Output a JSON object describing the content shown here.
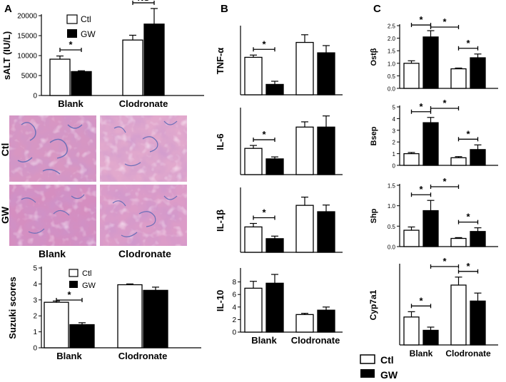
{
  "panel_labels": [
    "A",
    "B",
    "C"
  ],
  "colors": {
    "ctl_fill": "#ffffff",
    "gw_fill": "#000000",
    "stroke": "#000000",
    "tissue": "#d896c2"
  },
  "groups": [
    "Blank",
    "Clodronate"
  ],
  "legend": {
    "ctl": "Ctl",
    "gw": "GW"
  },
  "micrographs": {
    "row_labels": [
      "Ctl",
      "GW"
    ],
    "col_labels": [
      "Blank",
      "Clodronate"
    ]
  },
  "chart_data": [
    {
      "id": "salt",
      "type": "bar",
      "ylabel": "sALT (IU/L)",
      "ylim": [
        0,
        20000
      ],
      "yticks": [
        0,
        5000,
        10000,
        15000,
        20000
      ],
      "tick_labels": [
        "0",
        "5000",
        "10000",
        "15000",
        "20000"
      ],
      "categories": [
        "Blank",
        "Clodronate"
      ],
      "series": [
        {
          "name": "Ctl",
          "values": [
            9100,
            13900
          ],
          "errors": [
            800,
            1200
          ]
        },
        {
          "name": "GW",
          "values": [
            6000,
            17900
          ],
          "errors": [
            200,
            3900
          ]
        }
      ],
      "annotations": [
        {
          "text": "*",
          "between": "Blank Ctl-GW"
        },
        {
          "text": "NS",
          "between": "Clodronate Ctl-GW"
        }
      ]
    },
    {
      "id": "suzuki",
      "type": "bar",
      "ylabel": "Suzuki scores",
      "ylim": [
        0,
        5
      ],
      "yticks": [
        0,
        1,
        2,
        3,
        4,
        5
      ],
      "tick_labels": [
        "0",
        "1",
        "2",
        "3",
        "4",
        "5"
      ],
      "categories": [
        "Blank",
        "Clodronate"
      ],
      "series": [
        {
          "name": "Ctl",
          "values": [
            2.85,
            3.95
          ],
          "errors": [
            0.08,
            0.05
          ]
        },
        {
          "name": "GW",
          "values": [
            1.45,
            3.6
          ],
          "errors": [
            0.12,
            0.2
          ]
        }
      ],
      "annotations": [
        {
          "text": "*",
          "between": "Blank Ctl-GW"
        }
      ]
    },
    {
      "id": "tnf",
      "type": "bar",
      "ylabel": "TNF-α",
      "ylim": [
        0,
        15
      ],
      "categories": [
        "Blank",
        "Clodronate"
      ],
      "series": [
        {
          "name": "Ctl",
          "values": [
            8.3,
            11.6
          ],
          "errors": [
            0.5,
            1.7
          ]
        },
        {
          "name": "GW",
          "values": [
            2.3,
            9.3
          ],
          "errors": [
            0.7,
            1.6
          ]
        }
      ],
      "annotations": [
        {
          "text": "*",
          "between": "Blank Ctl-GW"
        }
      ]
    },
    {
      "id": "il6",
      "type": "bar",
      "ylabel": "IL-6",
      "ylim": [
        0,
        20
      ],
      "categories": [
        "Blank",
        "Clodronate"
      ],
      "series": [
        {
          "name": "Ctl",
          "values": [
            8.0,
            14.5
          ],
          "errors": [
            0.9,
            1.6
          ]
        },
        {
          "name": "GW",
          "values": [
            4.8,
            14.5
          ],
          "errors": [
            0.6,
            3.4
          ]
        }
      ],
      "annotations": [
        {
          "text": "*",
          "between": "Blank Ctl-GW"
        }
      ]
    },
    {
      "id": "il1b",
      "type": "bar",
      "ylabel": "IL-1β",
      "ylim": [
        0,
        20
      ],
      "categories": [
        "Blank",
        "Clodronate"
      ],
      "series": [
        {
          "name": "Ctl",
          "values": [
            8.0,
            14.8
          ],
          "errors": [
            1.1,
            2.6
          ]
        },
        {
          "name": "GW",
          "values": [
            4.3,
            12.8
          ],
          "errors": [
            0.8,
            2.1
          ]
        }
      ],
      "annotations": [
        {
          "text": "*",
          "between": "Blank Ctl-GW"
        }
      ]
    },
    {
      "id": "il10",
      "type": "bar",
      "ylabel": "IL-10",
      "ylim": [
        0,
        10
      ],
      "yticks": [
        0,
        2,
        4,
        6,
        8
      ],
      "tick_labels": [
        "0",
        "2",
        "4",
        "6",
        "8"
      ],
      "categories": [
        "Blank",
        "Clodronate"
      ],
      "series": [
        {
          "name": "Ctl",
          "values": [
            7.0,
            2.8
          ],
          "errors": [
            1.1,
            0.2
          ]
        },
        {
          "name": "GW",
          "values": [
            7.8,
            3.5
          ],
          "errors": [
            1.4,
            0.5
          ]
        }
      ],
      "annotations": []
    },
    {
      "id": "ostb",
      "type": "bar",
      "ylabel": "Ostβ",
      "ylim": [
        0,
        2.5
      ],
      "yticks": [
        0,
        0.5,
        1,
        1.5,
        2,
        2.5
      ],
      "tick_labels": [
        "0.0",
        "0.5",
        "1.0",
        "1.5",
        "2.0",
        "2.5"
      ],
      "categories": [
        "Blank",
        "Clodronate"
      ],
      "series": [
        {
          "name": "Ctl",
          "values": [
            1.0,
            0.78
          ],
          "errors": [
            0.1,
            0.03
          ]
        },
        {
          "name": "GW",
          "values": [
            2.05,
            1.22
          ],
          "errors": [
            0.25,
            0.15
          ]
        }
      ],
      "annotations": [
        {
          "text": "*",
          "between": "Blank Ctl-GW"
        },
        {
          "text": "*",
          "between": "Blank GW-Clodronate Ctl"
        },
        {
          "text": "*",
          "between": "Clodronate Ctl-GW"
        }
      ]
    },
    {
      "id": "bsep",
      "type": "bar",
      "ylabel": "Bsep",
      "ylim": [
        0,
        5
      ],
      "yticks": [
        0,
        1,
        2,
        3,
        4,
        5
      ],
      "tick_labels": [
        "0",
        "1",
        "2",
        "3",
        "4",
        "5"
      ],
      "categories": [
        "Blank",
        "Clodronate"
      ],
      "series": [
        {
          "name": "Ctl",
          "values": [
            1.0,
            0.65
          ],
          "errors": [
            0.1,
            0.1
          ]
        },
        {
          "name": "GW",
          "values": [
            3.65,
            1.35
          ],
          "errors": [
            0.45,
            0.4
          ]
        }
      ],
      "annotations": [
        {
          "text": "*",
          "between": "Blank Ctl-GW"
        },
        {
          "text": "*",
          "between": "Blank GW-Clodronate Ctl"
        },
        {
          "text": "*",
          "between": "Clodronate Ctl-GW"
        }
      ]
    },
    {
      "id": "shp",
      "type": "bar",
      "ylabel": "Shp",
      "ylim": [
        0,
        1.5
      ],
      "yticks": [
        0,
        0.5,
        1,
        1.5
      ],
      "tick_labels": [
        "0.0",
        "0.5",
        "1.0",
        "1.5"
      ],
      "categories": [
        "Blank",
        "Clodronate"
      ],
      "series": [
        {
          "name": "Ctl",
          "values": [
            0.4,
            0.2
          ],
          "errors": [
            0.08,
            0.02
          ]
        },
        {
          "name": "GW",
          "values": [
            0.88,
            0.37
          ],
          "errors": [
            0.25,
            0.09
          ]
        }
      ],
      "annotations": [
        {
          "text": "*",
          "between": "Blank Ctl-GW"
        },
        {
          "text": "*",
          "between": "Blank GW-Clodronate Ctl"
        },
        {
          "text": "*",
          "between": "Clodronate Ctl-GW"
        }
      ]
    },
    {
      "id": "cyp",
      "type": "bar",
      "ylabel": "Cyp7a1",
      "ylim": [
        0,
        3
      ],
      "categories": [
        "Blank",
        "Clodronate"
      ],
      "series": [
        {
          "name": "Ctl",
          "values": [
            1.05,
            2.25
          ],
          "errors": [
            0.2,
            0.3
          ]
        },
        {
          "name": "GW",
          "values": [
            0.55,
            1.65
          ],
          "errors": [
            0.12,
            0.3
          ]
        }
      ],
      "annotations": [
        {
          "text": "*",
          "between": "Blank Ctl-GW"
        },
        {
          "text": "*",
          "between": "Blank GW-Clodronate Ctl"
        },
        {
          "text": "*",
          "between": "Clodronate Ctl-GW"
        }
      ]
    }
  ]
}
